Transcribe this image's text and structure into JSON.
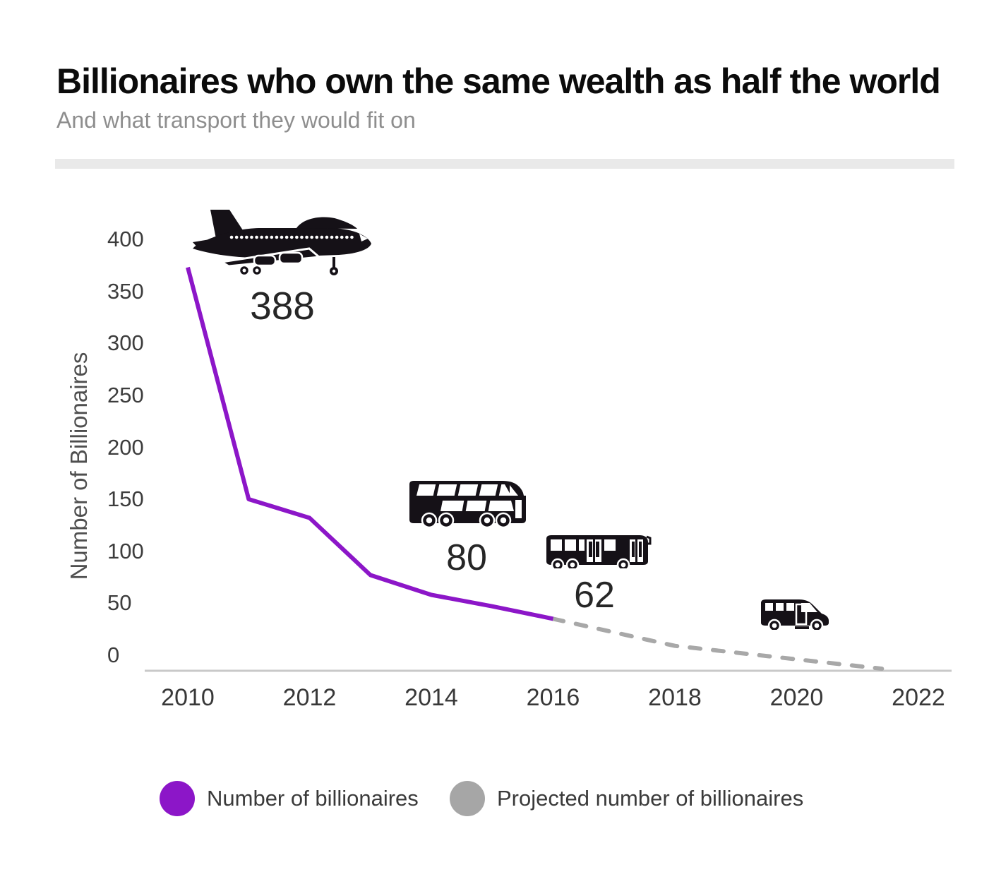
{
  "chart_data": {
    "type": "line",
    "title": "Billionaires who own the same wealth as half the world",
    "subtitle": "And what transport they would fit on",
    "ylabel": "Number of Billionaires",
    "xlabel": "",
    "ylim": [
      0,
      400
    ],
    "xlim": [
      2009,
      2022.6
    ],
    "y_ticks": [
      400,
      350,
      300,
      250,
      200,
      150,
      100,
      50,
      0
    ],
    "x_ticks": [
      2010,
      2012,
      2014,
      2016,
      2018,
      2020,
      2022
    ],
    "grid": false,
    "legend_position": "bottom-center",
    "series": [
      {
        "name": "Number of billionaires",
        "style": "solid",
        "color": "#8C16C8",
        "x": [
          2010,
          2011,
          2012,
          2013,
          2014,
          2015,
          2016
        ],
        "y": [
          388,
          165,
          147,
          92,
          73,
          62,
          50
        ]
      },
      {
        "name": "Projected number of billionaires",
        "style": "dashed",
        "color": "#A8A8A8",
        "x": [
          2016,
          2018,
          2020,
          2021.4
        ],
        "y": [
          50,
          24,
          11,
          2
        ]
      }
    ],
    "annotations": [
      {
        "icon": "airplane",
        "label": "388"
      },
      {
        "icon": "double-decker-bus",
        "label": "80"
      },
      {
        "icon": "city-bus",
        "label": "62"
      },
      {
        "icon": "minibus",
        "label": ""
      }
    ]
  },
  "legend": {
    "items": [
      {
        "label": "Number of billionaires",
        "color": "#8C16C8"
      },
      {
        "label": "Projected number of billionaires",
        "color": "#A6A6A6"
      }
    ]
  },
  "axis_colors": {
    "baseline": "#C9C9C9"
  }
}
